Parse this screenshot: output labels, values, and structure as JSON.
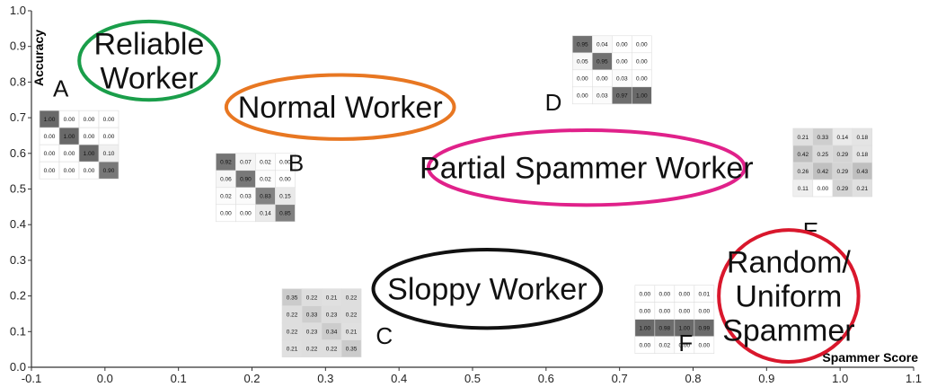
{
  "chart_data": {
    "type": "scatter",
    "xlabel": "Spammer Score",
    "ylabel": "Accuracy",
    "xlim": [
      -0.1,
      1.1
    ],
    "ylim": [
      0.0,
      1.0
    ],
    "x_ticks": [
      "-0.1",
      "0.0",
      "0.1",
      "0.2",
      "0.3",
      "0.4",
      "0.5",
      "0.6",
      "0.7",
      "0.8",
      "0.9",
      "1.0",
      "1.1"
    ],
    "y_ticks": [
      "0.0",
      "0.1",
      "0.2",
      "0.3",
      "0.4",
      "0.5",
      "0.6",
      "0.7",
      "0.8",
      "0.9",
      "1.0"
    ],
    "grid": false,
    "categories": [
      {
        "label": "Reliable Worker",
        "lines": [
          "Reliable",
          "Worker"
        ],
        "center": [
          0.06,
          0.86
        ],
        "rx": 0.095,
        "ry": 0.11,
        "color": "#1a9e4a"
      },
      {
        "label": "Normal Worker",
        "lines": [
          "Normal Worker"
        ],
        "center": [
          0.32,
          0.73
        ],
        "rx": 0.155,
        "ry": 0.09,
        "color": "#e87722"
      },
      {
        "label": "Partial Spammer Worker",
        "lines": [
          "Partial Spammer Worker"
        ],
        "center": [
          0.655,
          0.56
        ],
        "rx": 0.215,
        "ry": 0.105,
        "color": "#e0218a"
      },
      {
        "label": "Sloppy Worker",
        "lines": [
          "Sloppy Worker"
        ],
        "center": [
          0.52,
          0.22
        ],
        "rx": 0.155,
        "ry": 0.11,
        "color": "#111111"
      },
      {
        "label": "Random/ Uniform Spammer",
        "lines": [
          "Random/",
          "Uniform",
          "Spammer"
        ],
        "center": [
          0.93,
          0.2
        ],
        "rx": 0.095,
        "ry": 0.185,
        "color": "#d9172c"
      }
    ],
    "matrices": [
      {
        "letter": "A",
        "anchor": [
          -0.1,
          0.72
        ],
        "letter_pos": [
          -0.06,
          0.76
        ],
        "values": [
          [
            "1.00",
            "0.00",
            "0.00",
            "0.00"
          ],
          [
            "0.00",
            "1.00",
            "0.00",
            "0.00"
          ],
          [
            "0.00",
            "0.00",
            "1.00",
            "0.10"
          ],
          [
            "0.00",
            "0.00",
            "0.00",
            "0.90"
          ]
        ]
      },
      {
        "letter": "B",
        "anchor": [
          0.14,
          0.6
        ],
        "letter_pos": [
          0.26,
          0.55
        ],
        "values": [
          [
            "0.92",
            "0.07",
            "0.02",
            "0.00"
          ],
          [
            "0.06",
            "0.90",
            "0.02",
            "0.00"
          ],
          [
            "0.02",
            "0.03",
            "0.83",
            "0.15"
          ],
          [
            "0.00",
            "0.00",
            "0.14",
            "0.85"
          ]
        ]
      },
      {
        "letter": "C",
        "anchor": [
          0.23,
          0.22
        ],
        "letter_pos": [
          0.38,
          0.065
        ],
        "values": [
          [
            "0.35",
            "0.22",
            "0.21",
            "0.22"
          ],
          [
            "0.22",
            "0.33",
            "0.23",
            "0.22"
          ],
          [
            "0.22",
            "0.23",
            "0.34",
            "0.21"
          ],
          [
            "0.21",
            "0.22",
            "0.22",
            "0.35"
          ]
        ]
      },
      {
        "letter": "D",
        "anchor": [
          0.625,
          0.93
        ],
        "letter_pos": [
          0.61,
          0.72
        ],
        "values": [
          [
            "0.95",
            "0.04",
            "0.00",
            "0.00"
          ],
          [
            "0.05",
            "0.95",
            "0.00",
            "0.00"
          ],
          [
            "0.00",
            "0.00",
            "0.03",
            "0.00"
          ],
          [
            "0.00",
            "0.03",
            "0.97",
            "1.00"
          ]
        ]
      },
      {
        "letter": "E",
        "anchor": [
          0.925,
          0.67
        ],
        "letter_pos": [
          0.96,
          0.36
        ],
        "values": [
          [
            "0.21",
            "0.33",
            "0.14",
            "0.18"
          ],
          [
            "0.42",
            "0.25",
            "0.29",
            "0.18"
          ],
          [
            "0.26",
            "0.42",
            "0.29",
            "0.43"
          ],
          [
            "0.11",
            "0.00",
            "0.29",
            "0.21"
          ]
        ]
      },
      {
        "letter": "F",
        "anchor": [
          0.71,
          0.23
        ],
        "letter_pos": [
          0.79,
          0.045
        ],
        "values": [
          [
            "0.00",
            "0.00",
            "0.00",
            "0.01"
          ],
          [
            "0.00",
            "0.00",
            "0.00",
            "0.00"
          ],
          [
            "1.00",
            "0.98",
            "1.00",
            "0.99"
          ],
          [
            "0.00",
            "0.02",
            "0.00",
            "0.00"
          ]
        ]
      }
    ]
  }
}
